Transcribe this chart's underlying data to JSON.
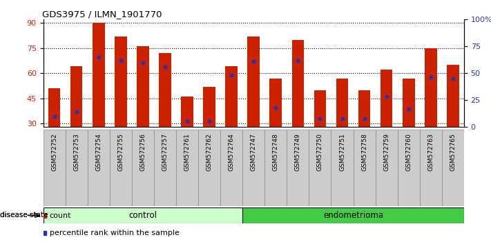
{
  "title": "GDS3975 / ILMN_1901770",
  "samples": [
    "GSM572752",
    "GSM572753",
    "GSM572754",
    "GSM572755",
    "GSM572756",
    "GSM572757",
    "GSM572761",
    "GSM572762",
    "GSM572764",
    "GSM572747",
    "GSM572748",
    "GSM572749",
    "GSM572750",
    "GSM572751",
    "GSM572758",
    "GSM572759",
    "GSM572760",
    "GSM572763",
    "GSM572765"
  ],
  "counts": [
    51,
    64,
    90,
    82,
    76,
    72,
    46,
    52,
    64,
    82,
    57,
    80,
    50,
    57,
    50,
    62,
    57,
    75,
    65
  ],
  "percentiles": [
    10,
    14,
    65,
    62,
    60,
    56,
    5,
    5,
    48,
    61,
    18,
    62,
    8,
    8,
    8,
    28,
    17,
    46,
    45
  ],
  "group_labels": [
    "control",
    "endometrioma"
  ],
  "group_counts": [
    9,
    10
  ],
  "ylim_left": [
    28,
    92
  ],
  "ylim_right": [
    0,
    100
  ],
  "yticks_left": [
    30,
    45,
    60,
    75,
    90
  ],
  "yticks_right": [
    0,
    25,
    50,
    75,
    100
  ],
  "bar_color": "#cc2200",
  "dot_color": "#2233bb",
  "bar_width": 0.55,
  "control_color": "#ccffcc",
  "endometrioma_color": "#44cc44",
  "grid_color": "#000000",
  "label_bg_color": "#cccccc",
  "label_bg_edge": "#888888"
}
